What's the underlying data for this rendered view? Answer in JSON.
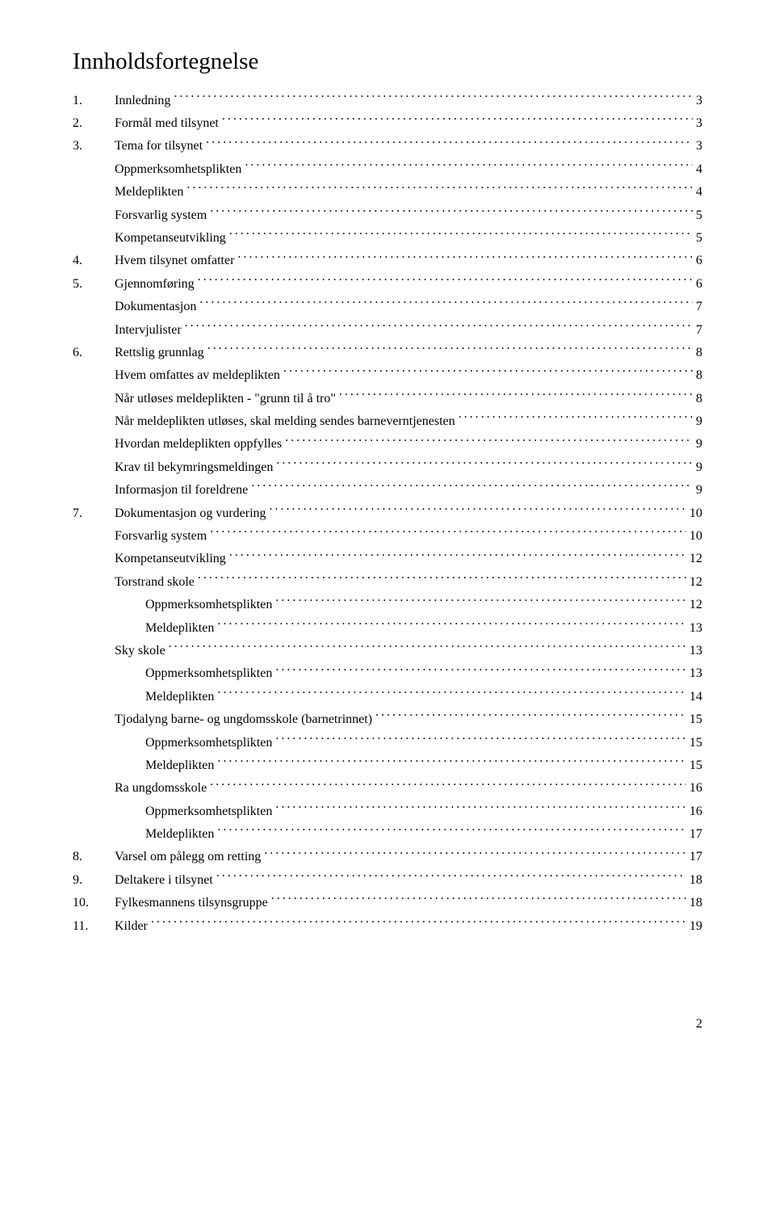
{
  "title": "Innholdsfortegnelse",
  "pageNumber": "2",
  "toc": [
    {
      "indent": 0,
      "num": "1.",
      "label": "Innledning",
      "page": "3"
    },
    {
      "indent": 0,
      "num": "2.",
      "label": "Formål med tilsynet",
      "page": "3"
    },
    {
      "indent": 0,
      "num": "3.",
      "label": "Tema for tilsynet",
      "page": "3"
    },
    {
      "indent": 1,
      "num": "",
      "label": "Oppmerksomhetsplikten",
      "page": "4"
    },
    {
      "indent": 1,
      "num": "",
      "label": "Meldeplikten",
      "page": "4"
    },
    {
      "indent": 1,
      "num": "",
      "label": "Forsvarlig system",
      "page": "5"
    },
    {
      "indent": 1,
      "num": "",
      "label": "Kompetanseutvikling",
      "page": "5"
    },
    {
      "indent": 0,
      "num": "4.",
      "label": "Hvem tilsynet omfatter",
      "page": "6"
    },
    {
      "indent": 0,
      "num": "5.",
      "label": "Gjennomføring",
      "page": "6"
    },
    {
      "indent": 1,
      "num": "",
      "label": "Dokumentasjon",
      "page": "7"
    },
    {
      "indent": 1,
      "num": "",
      "label": "Intervjulister",
      "page": "7"
    },
    {
      "indent": 0,
      "num": "6.",
      "label": "Rettslig grunnlag",
      "page": "8"
    },
    {
      "indent": 1,
      "num": "",
      "label": "Hvem omfattes av meldeplikten",
      "page": "8"
    },
    {
      "indent": 1,
      "num": "",
      "label": "Når utløses meldeplikten - \"grunn til å tro\"",
      "page": "8"
    },
    {
      "indent": 1,
      "num": "",
      "label": "Når meldeplikten utløses, skal melding sendes barneverntjenesten",
      "page": "9"
    },
    {
      "indent": 1,
      "num": "",
      "label": "Hvordan meldeplikten oppfylles",
      "page": "9"
    },
    {
      "indent": 1,
      "num": "",
      "label": "Krav til bekymringsmeldingen",
      "page": "9"
    },
    {
      "indent": 1,
      "num": "",
      "label": "Informasjon til foreldrene",
      "page": "9"
    },
    {
      "indent": 0,
      "num": "7.",
      "label": "Dokumentasjon og vurdering",
      "page": "10"
    },
    {
      "indent": 1,
      "num": "",
      "label": "Forsvarlig system",
      "page": "10"
    },
    {
      "indent": 1,
      "num": "",
      "label": "Kompetanseutvikling",
      "page": "12"
    },
    {
      "indent": 1,
      "num": "",
      "label": "Torstrand skole",
      "page": "12"
    },
    {
      "indent": 2,
      "num": "",
      "label": "Oppmerksomhetsplikten",
      "page": "12"
    },
    {
      "indent": 2,
      "num": "",
      "label": "Meldeplikten",
      "page": "13"
    },
    {
      "indent": 1,
      "num": "",
      "label": "Sky skole",
      "page": "13"
    },
    {
      "indent": 2,
      "num": "",
      "label": "Oppmerksomhetsplikten",
      "page": "13"
    },
    {
      "indent": 2,
      "num": "",
      "label": "Meldeplikten",
      "page": "14"
    },
    {
      "indent": 1,
      "num": "",
      "label": "Tjodalyng barne- og ungdomsskole (barnetrinnet)",
      "page": "15"
    },
    {
      "indent": 2,
      "num": "",
      "label": "Oppmerksomhetsplikten",
      "page": "15"
    },
    {
      "indent": 2,
      "num": "",
      "label": "Meldeplikten",
      "page": "15"
    },
    {
      "indent": 1,
      "num": "",
      "label": "Ra ungdomsskole",
      "page": "16"
    },
    {
      "indent": 2,
      "num": "",
      "label": "Oppmerksomhetsplikten",
      "page": "16"
    },
    {
      "indent": 2,
      "num": "",
      "label": "Meldeplikten",
      "page": "17"
    },
    {
      "indent": 0,
      "num": "8.",
      "label": "Varsel om pålegg om retting",
      "page": "17"
    },
    {
      "indent": 0,
      "num": "9.",
      "label": "Deltakere i tilsynet",
      "page": "18"
    },
    {
      "indent": 0,
      "num": "10.",
      "label": "Fylkesmannens tilsynsgruppe",
      "page": "18"
    },
    {
      "indent": 0,
      "num": "11.",
      "label": "Kilder",
      "page": "19"
    }
  ]
}
